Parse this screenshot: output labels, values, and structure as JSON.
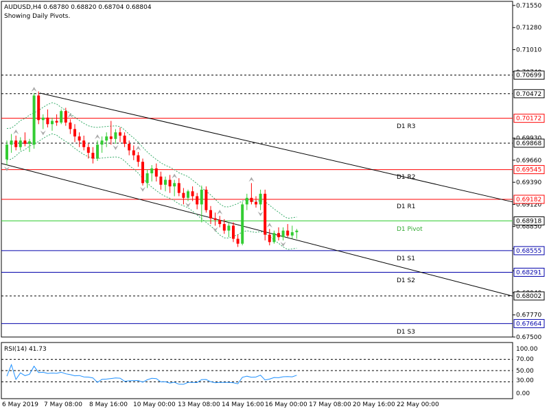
{
  "header": {
    "symbol_line": "AUDUSD,H4  0.68780 0.68820 0.68704 0.68804",
    "subtitle": "Showing Daily Pivots."
  },
  "price_axis": {
    "ticks": [
      "0.71550",
      "0.71280",
      "0.71010",
      "0.70740",
      "0.69930",
      "0.69660",
      "0.69390",
      "0.69120",
      "0.68850",
      "0.68580",
      "0.68310",
      "0.68040",
      "0.67770",
      "0.67500"
    ],
    "boxed": [
      {
        "value": "0.70699",
        "color": "#000000",
        "bg": "#ffffff"
      },
      {
        "value": "0.70472",
        "color": "#000000",
        "bg": "#ffffff"
      },
      {
        "value": "0.70172",
        "color": "#ff0000",
        "bg": "#ffffff"
      },
      {
        "value": "0.69868",
        "color": "#000000",
        "bg": "#ffffff"
      },
      {
        "value": "0.69545",
        "color": "#ff0000",
        "bg": "#ffffff"
      },
      {
        "value": "0.69182",
        "color": "#ff0000",
        "bg": "#ffffff"
      },
      {
        "value": "0.68918",
        "color": "#000000",
        "bg": "#ffffff"
      },
      {
        "value": "0.68555",
        "color": "#0000aa",
        "bg": "#ffffff"
      },
      {
        "value": "0.68291",
        "color": "#0000aa",
        "bg": "#ffffff"
      },
      {
        "value": "0.68002",
        "color": "#000000",
        "bg": "#ffffff"
      },
      {
        "value": "0.67664",
        "color": "#0000aa",
        "bg": "#ffffff"
      }
    ]
  },
  "pivot_labels": {
    "r3": "D1  R3",
    "r2": "D1  R2",
    "r1": "D1  R1",
    "pivot": "D1  Pivot",
    "s1": "D1  S1",
    "s2": "D1  S2",
    "s3": "D1  S3"
  },
  "rsi": {
    "label": "RSI(14) 41.73",
    "ticks": [
      "100.00",
      "70.00",
      "50.00",
      "30.00",
      "0.00"
    ]
  },
  "time_axis": {
    "labels": [
      "6 May 2019",
      "7 May 08:00",
      "8 May 16:00",
      "10 May 00:00",
      "13 May 08:00",
      "14 May 16:00",
      "16 May 00:00",
      "17 May 08:00",
      "20 May 16:00",
      "22 May 00:00"
    ]
  },
  "colors": {
    "bull": "#33cc33",
    "bear": "#ff0000",
    "resistance": "#ff0000",
    "support": "#0000aa",
    "pivot": "#33cc33",
    "rsi_line": "#1e90ff",
    "envelope": "#33aa66"
  },
  "chart_data": {
    "type": "candlestick",
    "symbol": "AUDUSD",
    "timeframe": "H4",
    "ohlc_last": {
      "open": 0.6878,
      "high": 0.6882,
      "low": 0.68704,
      "close": 0.68804
    },
    "pivots": {
      "R3": 0.70172,
      "R2": 0.69545,
      "R1": 0.69182,
      "Pivot": 0.68918,
      "S1": 0.68555,
      "S2": 0.68291,
      "S3": 0.67664
    },
    "dashed_levels": [
      0.70699,
      0.70472,
      0.69868,
      0.68002
    ],
    "ylim": [
      0.675,
      0.716
    ],
    "rsi_value": 41.73,
    "candles": [
      [
        0.6967,
        0.699,
        0.696,
        0.6985
      ],
      [
        0.6985,
        0.6998,
        0.6975,
        0.699
      ],
      [
        0.699,
        0.6996,
        0.6978,
        0.6982
      ],
      [
        0.6982,
        0.6994,
        0.6978,
        0.699
      ],
      [
        0.699,
        0.7,
        0.6983,
        0.6986
      ],
      [
        0.6986,
        0.6992,
        0.6976,
        0.6989
      ],
      [
        0.6985,
        0.7048,
        0.698,
        0.7045
      ],
      [
        0.7045,
        0.705,
        0.701,
        0.7015
      ],
      [
        0.7015,
        0.7022,
        0.7004,
        0.7018
      ],
      [
        0.7018,
        0.7028,
        0.7006,
        0.701
      ],
      [
        0.701,
        0.7018,
        0.7002,
        0.7014
      ],
      [
        0.7014,
        0.7022,
        0.7008,
        0.7012
      ],
      [
        0.7012,
        0.7028,
        0.701,
        0.7026
      ],
      [
        0.7026,
        0.703,
        0.7008,
        0.7012
      ],
      [
        0.7012,
        0.7016,
        0.6998,
        0.7004
      ],
      [
        0.7004,
        0.701,
        0.6988,
        0.6995
      ],
      [
        0.6995,
        0.7,
        0.6982,
        0.699
      ],
      [
        0.699,
        0.6996,
        0.6978,
        0.6982
      ],
      [
        0.6982,
        0.6986,
        0.6968,
        0.6975
      ],
      [
        0.6975,
        0.6982,
        0.6962,
        0.6968
      ],
      [
        0.6968,
        0.699,
        0.6965,
        0.6985
      ],
      [
        0.6985,
        0.6995,
        0.6975,
        0.699
      ],
      [
        0.699,
        0.7,
        0.6982,
        0.6995
      ],
      [
        0.6995,
        0.7014,
        0.6985,
        0.6992
      ],
      [
        0.6992,
        0.7004,
        0.6986,
        0.7
      ],
      [
        0.7,
        0.7006,
        0.6988,
        0.6996
      ],
      [
        0.6996,
        0.7,
        0.6982,
        0.6986
      ],
      [
        0.6986,
        0.699,
        0.6972,
        0.6978
      ],
      [
        0.6978,
        0.6984,
        0.6966,
        0.6972
      ],
      [
        0.6972,
        0.6976,
        0.6958,
        0.6964
      ],
      [
        0.6964,
        0.6968,
        0.6935,
        0.6938
      ],
      [
        0.6938,
        0.6955,
        0.6932,
        0.695
      ],
      [
        0.695,
        0.696,
        0.694,
        0.6956
      ],
      [
        0.6956,
        0.6962,
        0.694,
        0.6946
      ],
      [
        0.6946,
        0.6952,
        0.693,
        0.6936
      ],
      [
        0.6936,
        0.6946,
        0.6928,
        0.6942
      ],
      [
        0.6942,
        0.6948,
        0.6926,
        0.6934
      ],
      [
        0.6934,
        0.6942,
        0.6922,
        0.6938
      ],
      [
        0.6938,
        0.6944,
        0.6922,
        0.6926
      ],
      [
        0.6926,
        0.6932,
        0.6912,
        0.692
      ],
      [
        0.692,
        0.693,
        0.6916,
        0.6928
      ],
      [
        0.6928,
        0.6934,
        0.6916,
        0.6922
      ],
      [
        0.6922,
        0.6926,
        0.6906,
        0.6912
      ],
      [
        0.6912,
        0.6935,
        0.689,
        0.693
      ],
      [
        0.693,
        0.6934,
        0.6902,
        0.6905
      ],
      [
        0.6905,
        0.691,
        0.6888,
        0.6895
      ],
      [
        0.6895,
        0.6902,
        0.6886,
        0.6893
      ],
      [
        0.6893,
        0.6898,
        0.6884,
        0.6888
      ],
      [
        0.6888,
        0.6894,
        0.6876,
        0.688
      ],
      [
        0.688,
        0.689,
        0.6872,
        0.6886
      ],
      [
        0.6886,
        0.689,
        0.6866,
        0.687
      ],
      [
        0.687,
        0.6875,
        0.686,
        0.6864
      ],
      [
        0.6864,
        0.6915,
        0.6862,
        0.6912
      ],
      [
        0.6912,
        0.6925,
        0.6905,
        0.692
      ],
      [
        0.692,
        0.6938,
        0.6912,
        0.6915
      ],
      [
        0.6915,
        0.6922,
        0.6908,
        0.6912
      ],
      [
        0.6912,
        0.693,
        0.6905,
        0.6925
      ],
      [
        0.6925,
        0.693,
        0.6868,
        0.6875
      ],
      [
        0.6875,
        0.6882,
        0.6862,
        0.6866
      ],
      [
        0.6866,
        0.688,
        0.6864,
        0.6877
      ],
      [
        0.6877,
        0.6884,
        0.6868,
        0.6872
      ],
      [
        0.6872,
        0.6884,
        0.6868,
        0.688
      ],
      [
        0.688,
        0.6888,
        0.6872,
        0.6874
      ],
      [
        0.6874,
        0.6886,
        0.687,
        0.6878
      ],
      [
        0.6878,
        0.6882,
        0.687,
        0.688
      ]
    ]
  }
}
